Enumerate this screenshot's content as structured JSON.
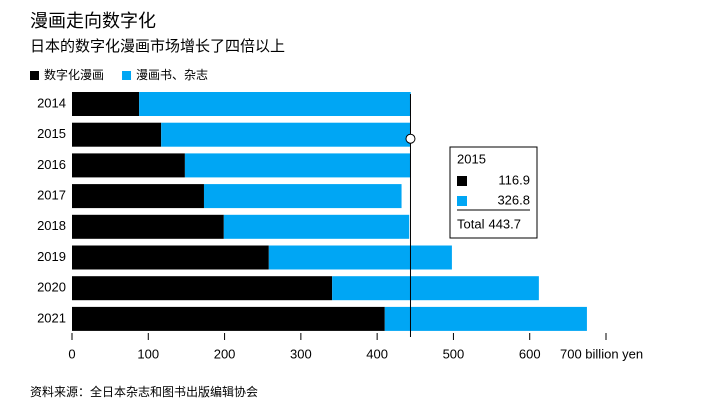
{
  "chart_data": {
    "type": "stacked-barh",
    "title": "漫画走向数字化",
    "subtitle": "日本的数字化漫画市场增长了四倍以上",
    "categories": [
      "2014",
      "2015",
      "2016",
      "2017",
      "2018",
      "2019",
      "2020",
      "2021"
    ],
    "series": [
      {
        "name": "数字化漫画",
        "color": "#000000",
        "values": [
          88,
          116.9,
          148,
          173,
          199,
          258,
          341,
          410
        ]
      },
      {
        "name": "漫画书、杂志",
        "color": "#00a6f4",
        "values": [
          356,
          326.8,
          296,
          259,
          243,
          240,
          271,
          265
        ]
      }
    ],
    "xlim": [
      0,
      700
    ],
    "xticks": [
      0,
      100,
      200,
      300,
      400,
      500,
      600,
      {
        "value": 700,
        "label": "700 billion yen"
      }
    ],
    "legend": "top-left",
    "tooltip": {
      "category": "2015",
      "total_label": "Total",
      "total": 443.7
    },
    "source": "资料来源：全日本杂志和图书出版编辑协会"
  }
}
